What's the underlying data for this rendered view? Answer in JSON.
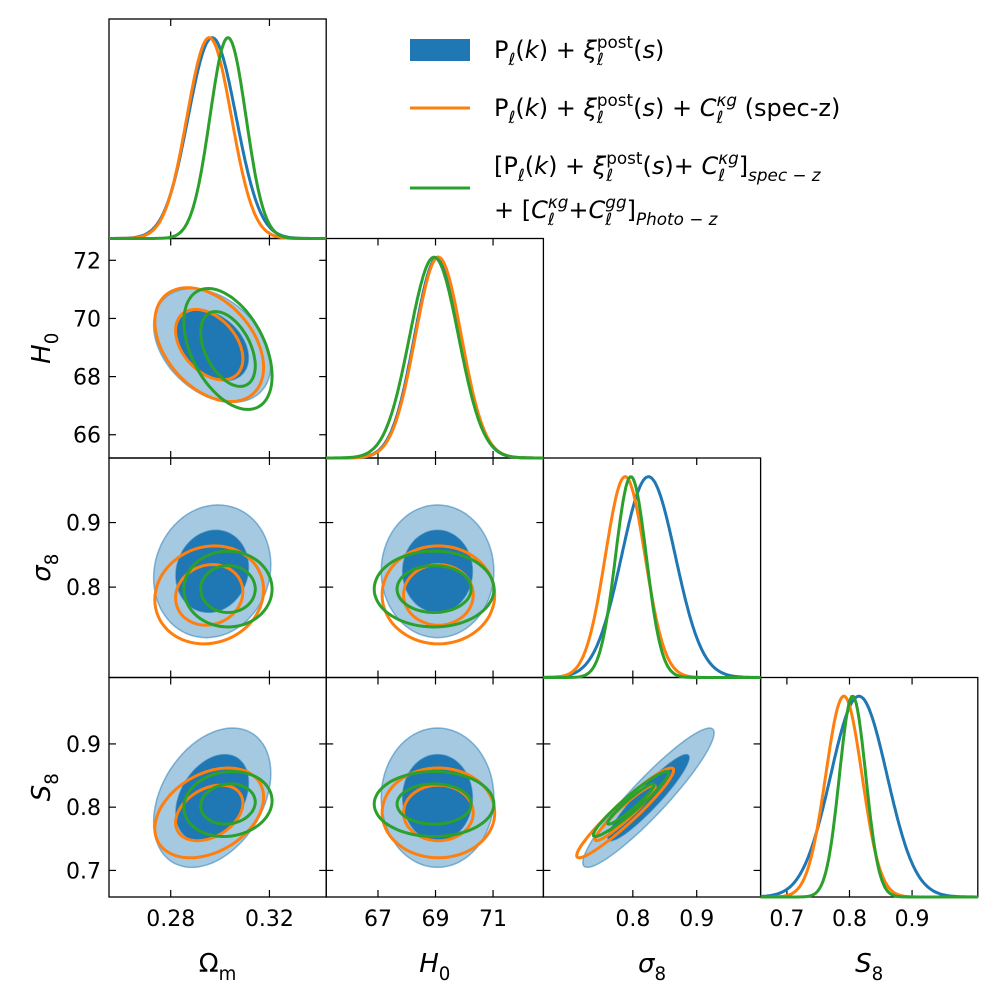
{
  "chart_data": {
    "type": "corner",
    "params": [
      {
        "label": [
          {
            "t": "Ω"
          },
          {
            "t": "m",
            "pos": "sub"
          }
        ],
        "lim": [
          0.255,
          0.343
        ],
        "xticks": [
          0.28,
          0.32
        ]
      },
      {
        "label": [
          {
            "t": "H",
            "it": true
          },
          {
            "t": "0",
            "pos": "sub"
          }
        ],
        "lim": [
          65.2,
          72.75
        ],
        "xticks": [
          67,
          69,
          71
        ],
        "yticks": [
          66,
          68,
          70,
          72
        ]
      },
      {
        "label": [
          {
            "t": "σ",
            "it": true
          },
          {
            "t": "8",
            "pos": "sub"
          }
        ],
        "lim": [
          0.66,
          1.0
        ],
        "xticks": [
          0.8,
          0.9
        ],
        "yticks": [
          0.8,
          0.9
        ]
      },
      {
        "label": [
          {
            "t": "S",
            "it": true
          },
          {
            "t": "8",
            "pos": "sub"
          }
        ],
        "lim": [
          0.658,
          1.005
        ],
        "xticks": [
          0.7,
          0.8,
          0.9
        ],
        "yticks": [
          0.7,
          0.8,
          0.9
        ]
      }
    ],
    "series": [
      {
        "name": [
          [
            {
              "t": "P"
            },
            {
              "t": "ℓ",
              "pos": "sub"
            },
            {
              "t": "("
            },
            {
              "t": "k",
              "it": true
            },
            {
              "t": ") + "
            },
            {
              "t": "ξ",
              "it": true
            },
            {
              "t": "post",
              "pos": "sup"
            },
            {
              "t": "ℓ",
              "pos": "sub",
              "stack": true
            },
            {
              "t": "("
            },
            {
              "t": "s",
              "it": true
            },
            {
              "t": ")"
            }
          ]
        ],
        "color": "#1f77b4",
        "filled": true,
        "mean": [
          0.2968,
          69.07,
          0.8245,
          0.815
        ],
        "sigma": [
          0.0097,
          0.8,
          0.042,
          0.045
        ],
        "corr": [
          [
            -0.35
          ],
          [
            0.1,
            0.0
          ],
          [
            0.35,
            0.0,
            0.93
          ]
        ]
      },
      {
        "name": [
          [
            {
              "t": "P"
            },
            {
              "t": "ℓ",
              "pos": "sub"
            },
            {
              "t": "("
            },
            {
              "t": "k",
              "it": true
            },
            {
              "t": ") + "
            },
            {
              "t": "ξ",
              "it": true
            },
            {
              "t": "post",
              "pos": "sup"
            },
            {
              "t": "ℓ",
              "pos": "sub",
              "stack": true
            },
            {
              "t": "("
            },
            {
              "t": "s",
              "it": true
            },
            {
              "t": ") + "
            },
            {
              "t": "C",
              "it": true
            },
            {
              "t": "κg",
              "pos": "sup",
              "it": true
            },
            {
              "t": "ℓ",
              "pos": "sub",
              "stack": true
            },
            {
              "t": " (spec-z)"
            }
          ]
        ],
        "color": "#ff7f0e",
        "filled": false,
        "mean": [
          0.2956,
          69.1,
          0.788,
          0.791
        ],
        "sigma": [
          0.009,
          0.8,
          0.031,
          0.029
        ],
        "corr": [
          [
            -0.4
          ],
          [
            0.1,
            0.0
          ],
          [
            0.35,
            0.0,
            0.95
          ]
        ]
      },
      {
        "name": [
          [
            {
              "t": "[P"
            },
            {
              "t": "ℓ",
              "pos": "sub"
            },
            {
              "t": "("
            },
            {
              "t": "k",
              "it": true
            },
            {
              "t": ") + "
            },
            {
              "t": "ξ",
              "it": true
            },
            {
              "t": "post",
              "pos": "sup"
            },
            {
              "t": "ℓ",
              "pos": "sub",
              "stack": true
            },
            {
              "t": "("
            },
            {
              "t": "s",
              "it": true
            },
            {
              "t": ")+ "
            },
            {
              "t": "C",
              "it": true
            },
            {
              "t": "κg",
              "pos": "sup",
              "it": true
            },
            {
              "t": "ℓ",
              "pos": "sub",
              "stack": true
            },
            {
              "t": "]"
            },
            {
              "t": "spec − z",
              "pos": "sub",
              "it": true
            }
          ],
          [
            {
              "t": "+ ["
            },
            {
              "t": "C",
              "it": true
            },
            {
              "t": "κg",
              "pos": "sup",
              "it": true
            },
            {
              "t": "ℓ",
              "pos": "sub",
              "stack": true
            },
            {
              "t": "+"
            },
            {
              "t": "C",
              "it": true
            },
            {
              "t": "gg",
              "pos": "sup",
              "it": true
            },
            {
              "t": "ℓ",
              "pos": "sub",
              "stack": true
            },
            {
              "t": "]"
            },
            {
              "t": "Photo − z",
              "pos": "sub",
              "it": true
            }
          ]
        ],
        "color": "#2ca02c",
        "filled": false,
        "mean": [
          0.3032,
          68.95,
          0.797,
          0.805
        ],
        "sigma": [
          0.0073,
          0.85,
          0.024,
          0.021
        ],
        "corr": [
          [
            -0.45
          ],
          [
            0.0,
            0.0
          ],
          [
            0.1,
            0.0,
            0.95
          ]
        ]
      }
    ]
  }
}
